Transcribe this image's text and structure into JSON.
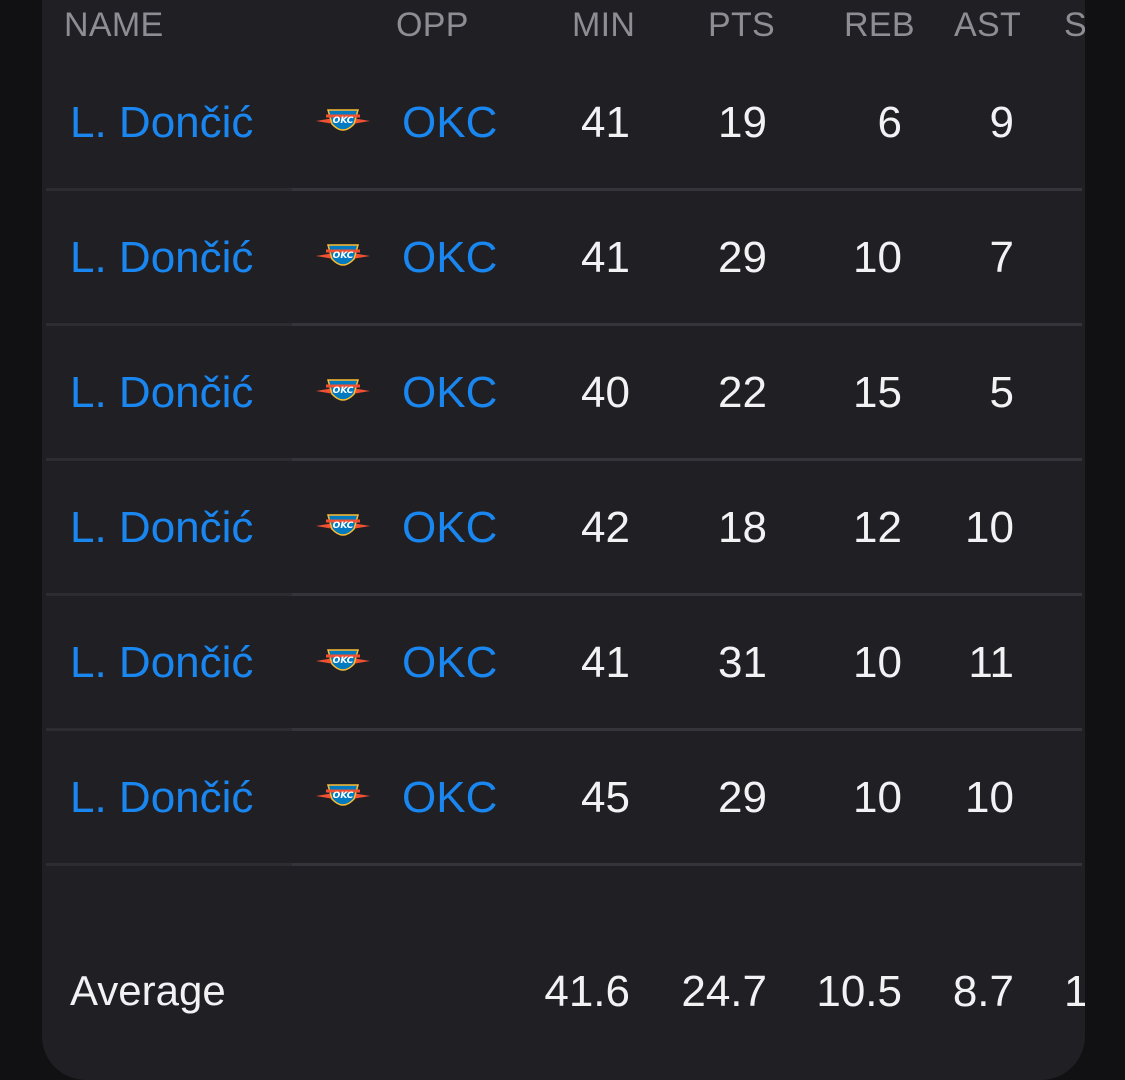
{
  "table": {
    "headers": {
      "name": "NAME",
      "opp": "OPP",
      "min": "MIN",
      "pts": "PTS",
      "reb": "REB",
      "ast": "AST",
      "next": "S"
    },
    "team_logo_icon": "okc-thunder-logo-icon",
    "colors": {
      "link": "#1a86f0",
      "background": "#202024",
      "header_text": "#8d8d93",
      "value_text": "#f2f2f5"
    },
    "rows": [
      {
        "name": "L. Dončić",
        "opp": "OKC",
        "min": "41",
        "pts": "19",
        "reb": "6",
        "ast": "9"
      },
      {
        "name": "L. Dončić",
        "opp": "OKC",
        "min": "41",
        "pts": "29",
        "reb": "10",
        "ast": "7"
      },
      {
        "name": "L. Dončić",
        "opp": "OKC",
        "min": "40",
        "pts": "22",
        "reb": "15",
        "ast": "5"
      },
      {
        "name": "L. Dončić",
        "opp": "OKC",
        "min": "42",
        "pts": "18",
        "reb": "12",
        "ast": "10"
      },
      {
        "name": "L. Dončić",
        "opp": "OKC",
        "min": "41",
        "pts": "31",
        "reb": "10",
        "ast": "11"
      },
      {
        "name": "L. Dončić",
        "opp": "OKC",
        "min": "45",
        "pts": "29",
        "reb": "10",
        "ast": "10"
      }
    ],
    "average": {
      "label": "Average",
      "min": "41.6",
      "pts": "24.7",
      "reb": "10.5",
      "ast": "8.7",
      "next": "1"
    }
  }
}
